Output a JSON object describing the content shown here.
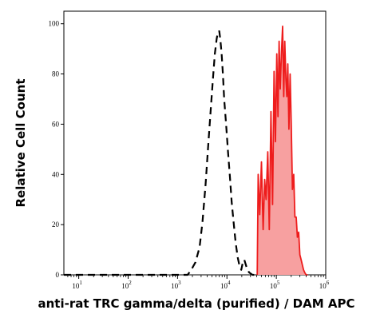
{
  "chart_data": {
    "type": "area",
    "xlabel": "anti-rat TRC gamma/delta (purified) / DAM APC",
    "ylabel": "Relative Cell Count",
    "x_scale": "log",
    "xlim": [
      5,
      1000000
    ],
    "ylim": [
      0,
      105
    ],
    "x_ticks": [
      {
        "value": 10,
        "base": "10",
        "exp": "1"
      },
      {
        "value": 100,
        "base": "10",
        "exp": "2"
      },
      {
        "value": 1000,
        "base": "10",
        "exp": "3"
      },
      {
        "value": 10000,
        "base": "10",
        "exp": "4"
      },
      {
        "value": 100000,
        "base": "10",
        "exp": "5"
      },
      {
        "value": 1000000,
        "base": "10",
        "exp": "6"
      }
    ],
    "y_ticks": [
      0,
      20,
      40,
      60,
      80,
      100
    ],
    "series": [
      {
        "style": "dashed",
        "color": "#000000",
        "fill": "none",
        "x": [
          5,
          1600,
          1900,
          2300,
          2800,
          3200,
          3700,
          4200,
          4700,
          5200,
          5700,
          6200,
          6600,
          7000,
          7400,
          7800,
          8300,
          8800,
          9600,
          10500,
          11500,
          12500,
          13800,
          15000,
          16500,
          17800,
          19500,
          21000,
          22500,
          25000,
          28000,
          33000,
          40000
        ],
        "y": [
          0,
          0,
          2,
          5,
          11,
          21,
          36,
          52,
          66,
          78,
          88,
          94,
          97,
          97,
          93,
          88,
          80,
          70,
          60,
          49,
          39,
          29,
          20,
          13,
          7,
          4,
          2,
          5,
          6,
          3,
          1,
          0,
          0
        ]
      },
      {
        "style": "solid",
        "color": "#ee1c1c",
        "fill": "#f7a0a0",
        "x": [
          41000,
          43000,
          46000,
          50000,
          54000,
          58000,
          62000,
          67000,
          72000,
          78000,
          84000,
          90000,
          96000,
          102000,
          108000,
          114000,
          120000,
          127000,
          134000,
          141000,
          148000,
          156000,
          163000,
          171000,
          180000,
          190000,
          200000,
          212000,
          225000,
          238000,
          252000,
          267000,
          283000,
          300000,
          318000,
          336000,
          355000,
          375000,
          400000,
          430000
        ],
        "y": [
          0,
          40,
          24,
          45,
          18,
          38,
          30,
          49,
          18,
          65,
          28,
          81,
          53,
          88,
          63,
          93,
          74,
          88,
          99,
          71,
          93,
          78,
          71,
          84,
          58,
          80,
          60,
          34,
          40,
          23,
          23,
          15,
          17,
          8,
          6,
          4,
          2,
          1,
          0,
          0
        ]
      }
    ]
  }
}
